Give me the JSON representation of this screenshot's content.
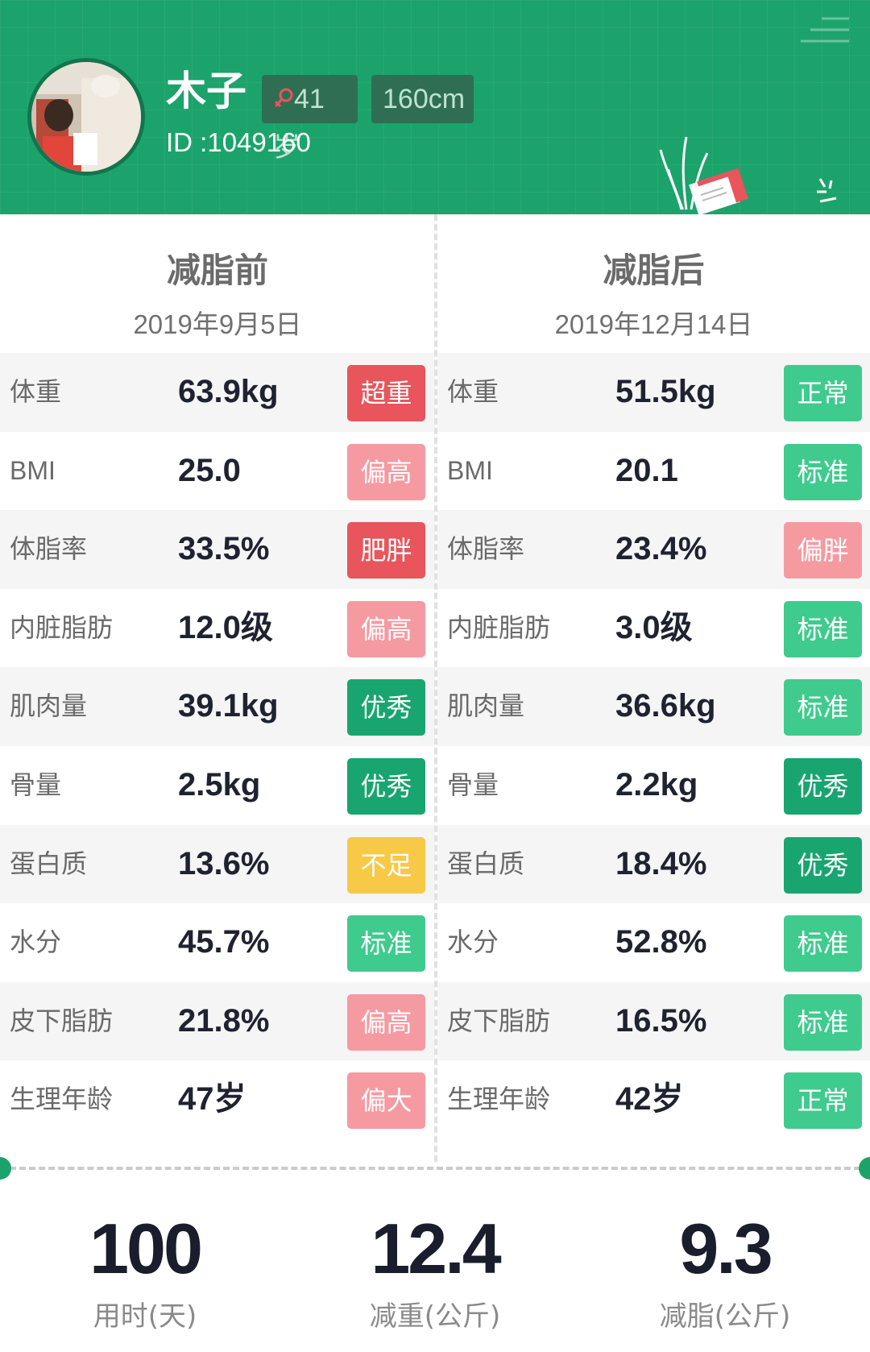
{
  "profile": {
    "name": "木子",
    "age_badge": "41岁",
    "height_badge": "160cm",
    "id_label": "ID :1049160"
  },
  "before": {
    "title": "减脂前",
    "date": "2019年9月5日",
    "metrics": [
      {
        "label": "体重",
        "value": "63.9kg",
        "status": "超重"
      },
      {
        "label": "BMI",
        "value": "25.0",
        "status": "偏高"
      },
      {
        "label": "体脂率",
        "value": "33.5%",
        "status": "肥胖"
      },
      {
        "label": "内脏脂肪",
        "value": "12.0级",
        "status": "偏高"
      },
      {
        "label": "肌肉量",
        "value": "39.1kg",
        "status": "优秀"
      },
      {
        "label": "骨量",
        "value": "2.5kg",
        "status": "优秀"
      },
      {
        "label": "蛋白质",
        "value": "13.6%",
        "status": "不足"
      },
      {
        "label": "水分",
        "value": "45.7%",
        "status": "标准"
      },
      {
        "label": "皮下脂肪",
        "value": "21.8%",
        "status": "偏高"
      },
      {
        "label": "生理年龄",
        "value": "47岁",
        "status": "偏大"
      }
    ]
  },
  "after": {
    "title": "减脂后",
    "date": "2019年12月14日",
    "metrics": [
      {
        "label": "体重",
        "value": "51.5kg",
        "status": "正常"
      },
      {
        "label": "BMI",
        "value": "20.1",
        "status": "标准"
      },
      {
        "label": "体脂率",
        "value": "23.4%",
        "status": "偏胖"
      },
      {
        "label": "内脏脂肪",
        "value": "3.0级",
        "status": "标准"
      },
      {
        "label": "肌肉量",
        "value": "36.6kg",
        "status": "标准"
      },
      {
        "label": "骨量",
        "value": "2.2kg",
        "status": "优秀"
      },
      {
        "label": "蛋白质",
        "value": "18.4%",
        "status": "优秀"
      },
      {
        "label": "水分",
        "value": "52.8%",
        "status": "标准"
      },
      {
        "label": "皮下脂肪",
        "value": "16.5%",
        "status": "标准"
      },
      {
        "label": "生理年龄",
        "value": "42岁",
        "status": "正常"
      }
    ]
  },
  "summary": [
    {
      "value": "100",
      "label": "用时(天)"
    },
    {
      "value": "12.4",
      "label": "减重(公斤)"
    },
    {
      "value": "9.3",
      "label": "减脂(公斤)"
    }
  ],
  "colors": {
    "header_green": "#1ca36c",
    "status_red": "#e8555c",
    "status_pink": "#f59aa1",
    "status_dark_green": "#19a56f",
    "status_green": "#3fcb8e",
    "status_yellow": "#f8c847"
  },
  "icons": {
    "menu": "menu-lines-icon",
    "gender": "female-symbol-icon",
    "decoration": "plant-with-card-illustration"
  }
}
